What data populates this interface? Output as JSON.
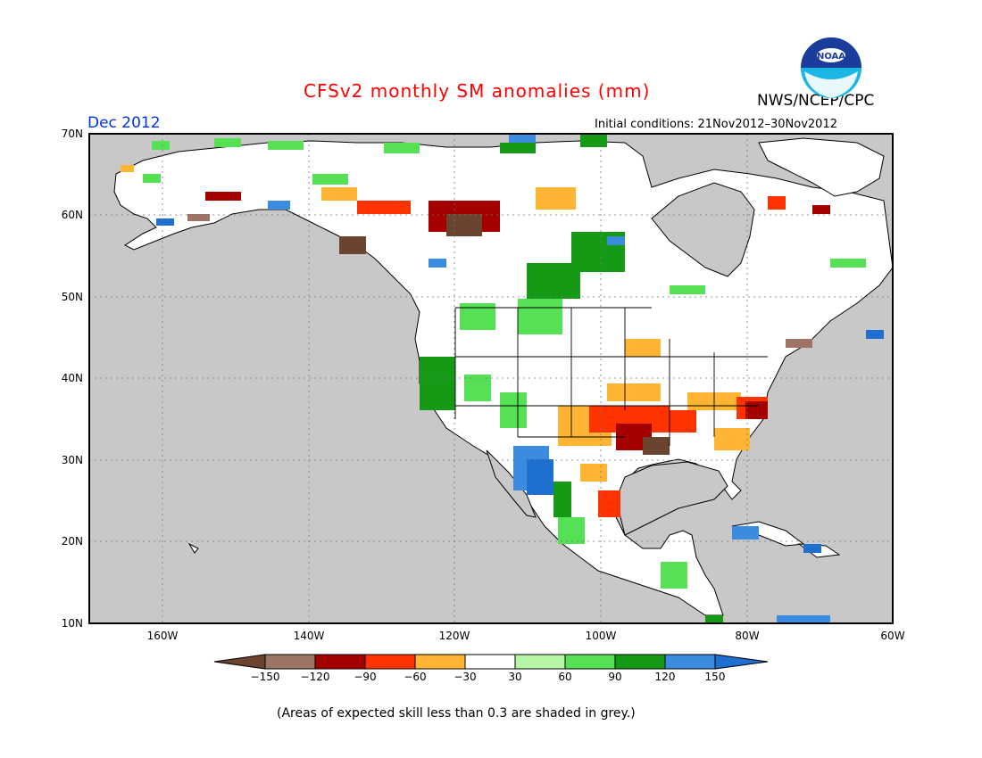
{
  "title": "CFSv2 monthly SM anomalies (mm)",
  "agency": "NWS/NCEP/CPC",
  "logo_text": "NOAA",
  "valid_month": "Dec 2012",
  "initial_conditions": "Initial conditions: 21Nov2012–30Nov2012",
  "lat_labels": [
    "70N",
    "60N",
    "50N",
    "40N",
    "30N",
    "20N",
    "10N"
  ],
  "lon_labels": [
    "160W",
    "140W",
    "120W",
    "100W",
    "80W",
    "60W"
  ],
  "colorbar": {
    "tick_labels": [
      "−150",
      "−120",
      "−90",
      "−60",
      "−30",
      "30",
      "60",
      "90",
      "120",
      "150"
    ],
    "colors": [
      "#6b4430",
      "#9e7466",
      "#a50000",
      "#ff3300",
      "#ffb533",
      "#ffffff",
      "#b5f5a5",
      "#55e055",
      "#149a14",
      "#3b8ce0",
      "#1e6fd0"
    ]
  },
  "footnote": "(Areas of expected skill less than 0.3 are shaded in grey.)",
  "colors": {
    "ocean": "#c8c8c8",
    "title": "#ff0000",
    "month": "#0033ee",
    "land": "#ffffff"
  }
}
